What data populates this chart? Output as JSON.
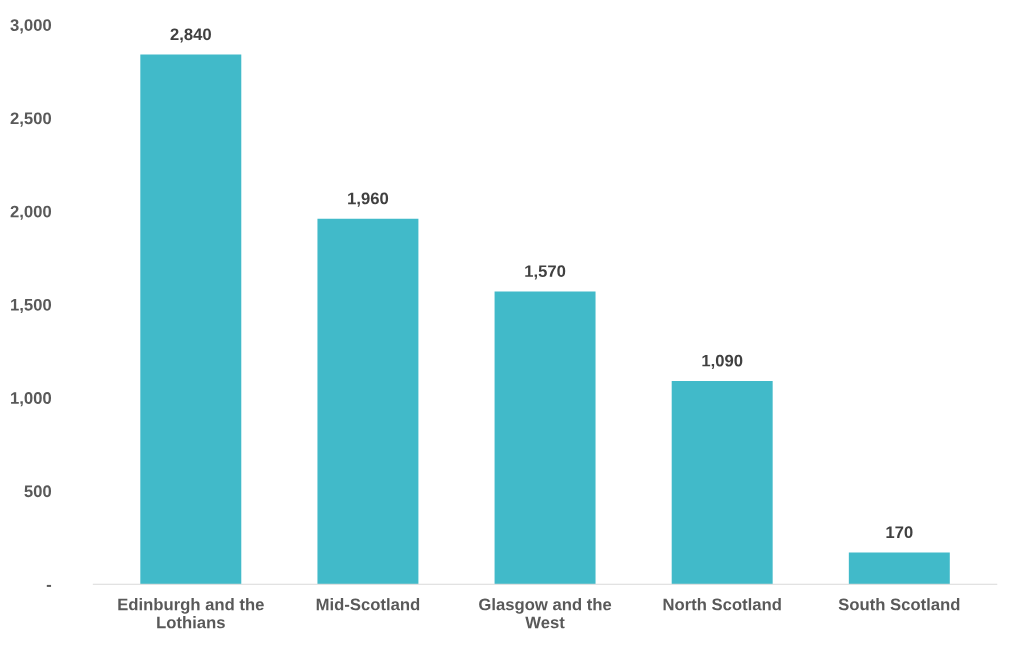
{
  "chart_data": {
    "type": "bar",
    "categories": [
      "Edinburgh and the Lothians",
      "Mid-Scotland",
      "Glasgow and the West",
      "North Scotland",
      "South Scotland"
    ],
    "values": [
      2840,
      1960,
      1570,
      1090,
      170
    ],
    "value_labels": [
      "2,840",
      "1,960",
      "1,570",
      "1,090",
      "170"
    ],
    "color": "#41bac9",
    "grid": false,
    "legend": false,
    "ylim": [
      0,
      3000
    ],
    "yticks": [
      {
        "value": 0,
        "label": "-"
      },
      {
        "value": 500,
        "label": "500"
      },
      {
        "value": 1000,
        "label": "1,000"
      },
      {
        "value": 1500,
        "label": "1,500"
      },
      {
        "value": 2000,
        "label": "2,000"
      },
      {
        "value": 2500,
        "label": "2,500"
      },
      {
        "value": 3000,
        "label": "3,000"
      }
    ]
  }
}
